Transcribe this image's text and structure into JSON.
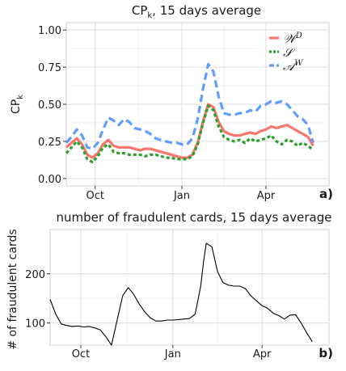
{
  "chart_data": [
    {
      "type": "line",
      "title": "CP",
      "title_sub": "k",
      "title_rest": ", 15 days average",
      "ylabel": "CP",
      "ylabel_sub": "k",
      "panel_tag": "a)",
      "xlim": [
        0,
        100
      ],
      "ylim": [
        -0.05,
        1.05
      ],
      "xticks": [
        {
          "x": 11,
          "label": "Oct"
        },
        {
          "x": 44,
          "label": "Jan"
        },
        {
          "x": 76,
          "label": "Apr"
        }
      ],
      "yticks": [
        {
          "y": 0.0,
          "label": "0.00"
        },
        {
          "y": 0.25,
          "label": "0.25"
        },
        {
          "y": 0.5,
          "label": "0.50"
        },
        {
          "y": 0.75,
          "label": "0.75"
        },
        {
          "y": 1.0,
          "label": "1.00"
        }
      ],
      "grid": true,
      "legend": "top-right",
      "x": [
        0,
        2,
        4,
        6,
        8,
        10,
        12,
        14,
        16,
        18,
        20,
        22,
        24,
        26,
        28,
        30,
        32,
        34,
        36,
        38,
        40,
        42,
        44,
        46,
        48,
        50,
        52,
        54,
        56,
        58,
        60,
        62,
        64,
        66,
        68,
        70,
        72,
        74,
        76,
        78,
        80,
        82,
        84,
        86,
        88,
        90,
        92,
        94
      ],
      "series": [
        {
          "name": "W^D",
          "label_main": "𝒲",
          "label_sup": "D",
          "color": "#F8766D",
          "dash": "solid",
          "values": [
            0.21,
            0.24,
            0.27,
            0.23,
            0.16,
            0.14,
            0.17,
            0.23,
            0.26,
            0.22,
            0.21,
            0.21,
            0.21,
            0.2,
            0.19,
            0.2,
            0.2,
            0.19,
            0.18,
            0.17,
            0.16,
            0.15,
            0.14,
            0.14,
            0.16,
            0.24,
            0.38,
            0.5,
            0.48,
            0.38,
            0.32,
            0.3,
            0.29,
            0.29,
            0.3,
            0.31,
            0.3,
            0.32,
            0.33,
            0.35,
            0.34,
            0.35,
            0.36,
            0.34,
            0.32,
            0.3,
            0.28,
            0.22
          ]
        },
        {
          "name": "S",
          "label_main": "𝒮",
          "label_sup": "",
          "color": "#2CA02C",
          "dash": "dotted",
          "values": [
            0.17,
            0.21,
            0.25,
            0.21,
            0.13,
            0.11,
            0.15,
            0.21,
            0.23,
            0.18,
            0.17,
            0.17,
            0.16,
            0.16,
            0.16,
            0.15,
            0.16,
            0.16,
            0.15,
            0.14,
            0.14,
            0.13,
            0.13,
            0.13,
            0.15,
            0.23,
            0.37,
            0.49,
            0.46,
            0.35,
            0.28,
            0.26,
            0.25,
            0.26,
            0.24,
            0.27,
            0.25,
            0.26,
            0.27,
            0.29,
            0.25,
            0.23,
            0.26,
            0.25,
            0.22,
            0.24,
            0.22,
            0.19
          ]
        },
        {
          "name": "A^W",
          "label_main": "𝒜",
          "label_sup": "W",
          "color": "#619CFF",
          "dash": "dashed",
          "values": [
            0.24,
            0.28,
            0.33,
            0.29,
            0.21,
            0.2,
            0.24,
            0.33,
            0.41,
            0.39,
            0.36,
            0.4,
            0.38,
            0.34,
            0.33,
            0.32,
            0.3,
            0.27,
            0.26,
            0.25,
            0.24,
            0.24,
            0.23,
            0.23,
            0.27,
            0.4,
            0.6,
            0.77,
            0.72,
            0.55,
            0.44,
            0.43,
            0.43,
            0.44,
            0.44,
            0.46,
            0.45,
            0.49,
            0.5,
            0.52,
            0.51,
            0.52,
            0.5,
            0.46,
            0.42,
            0.4,
            0.36,
            0.24
          ]
        }
      ]
    },
    {
      "type": "line",
      "title": "number of fraudulent cards, 15 days average",
      "ylabel": "# of fraudulent cards",
      "panel_tag": "b)",
      "xlim": [
        0,
        100
      ],
      "ylim": [
        55,
        290
      ],
      "xticks": [
        {
          "x": 11,
          "label": "Oct"
        },
        {
          "x": 44,
          "label": "Jan"
        },
        {
          "x": 76,
          "label": "Apr"
        }
      ],
      "yticks": [
        {
          "y": 100,
          "label": "100"
        },
        {
          "y": 200,
          "label": "200"
        }
      ],
      "grid": true,
      "series": [
        {
          "name": "",
          "color": "#000000",
          "x": [
            0,
            2,
            4,
            6,
            8,
            10,
            12,
            14,
            16,
            18,
            20,
            22,
            24,
            26,
            28,
            30,
            32,
            34,
            36,
            38,
            40,
            42,
            44,
            46,
            48,
            50,
            52,
            54,
            55,
            56,
            58,
            60,
            62,
            64,
            66,
            68,
            70,
            72,
            74,
            76,
            78,
            80,
            82,
            84,
            86,
            88,
            90,
            92,
            94
          ],
          "values": [
            148,
            118,
            98,
            95,
            93,
            94,
            92,
            93,
            90,
            86,
            72,
            55,
            105,
            155,
            172,
            158,
            138,
            122,
            110,
            104,
            104,
            106,
            106,
            107,
            108,
            109,
            118,
            175,
            225,
            262,
            255,
            205,
            182,
            177,
            175,
            175,
            170,
            155,
            145,
            135,
            130,
            120,
            115,
            108,
            116,
            117,
            100,
            80,
            62
          ]
        }
      ]
    }
  ]
}
